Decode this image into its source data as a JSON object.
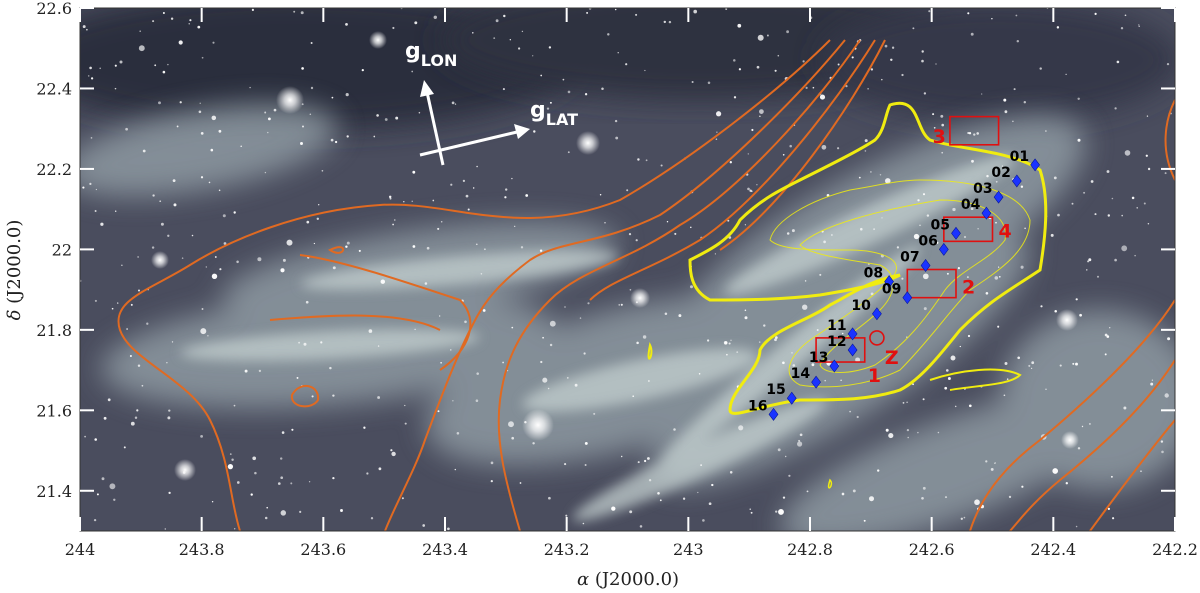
{
  "x_axis": {
    "label_symbol": "α",
    "label_text": " (J2000.0)",
    "ticks": [
      "244",
      "243.8",
      "243.6",
      "243.4",
      "243.2",
      "243",
      "242.8",
      "242.6",
      "242.4",
      "242.2"
    ]
  },
  "y_axis": {
    "label_symbol": "δ",
    "label_text": " (J2000.0)",
    "ticks": [
      "22.6",
      "22.4",
      "22.2",
      "22",
      "21.8",
      "21.6",
      "21.4"
    ]
  },
  "direction_arrows": {
    "lon_main": "g",
    "lon_sub": "LON",
    "lat_main": "g",
    "lat_sub": "LAT"
  },
  "markers": [
    {
      "label": "01",
      "ra": 242.43,
      "dec": 22.21
    },
    {
      "label": "02",
      "ra": 242.46,
      "dec": 22.17
    },
    {
      "label": "03",
      "ra": 242.49,
      "dec": 22.13
    },
    {
      "label": "04",
      "ra": 242.51,
      "dec": 22.09
    },
    {
      "label": "05",
      "ra": 242.56,
      "dec": 22.04
    },
    {
      "label": "06",
      "ra": 242.58,
      "dec": 22.0
    },
    {
      "label": "07",
      "ra": 242.61,
      "dec": 21.96
    },
    {
      "label": "08",
      "ra": 242.67,
      "dec": 21.92
    },
    {
      "label": "09",
      "ra": 242.64,
      "dec": 21.88
    },
    {
      "label": "10",
      "ra": 242.69,
      "dec": 21.84
    },
    {
      "label": "11",
      "ra": 242.73,
      "dec": 21.79
    },
    {
      "label": "12",
      "ra": 242.73,
      "dec": 21.75
    },
    {
      "label": "13",
      "ra": 242.76,
      "dec": 21.71
    },
    {
      "label": "14",
      "ra": 242.79,
      "dec": 21.67
    },
    {
      "label": "15",
      "ra": 242.83,
      "dec": 21.63
    },
    {
      "label": "16",
      "ra": 242.86,
      "dec": 21.59
    }
  ],
  "regions": [
    {
      "label": "1",
      "ra_min": 242.71,
      "ra_max": 242.79,
      "dec_min": 21.72,
      "dec_max": 21.78
    },
    {
      "label": "2",
      "ra_min": 242.56,
      "ra_max": 242.64,
      "dec_min": 21.88,
      "dec_max": 21.95
    },
    {
      "label": "3",
      "ra_min": 242.49,
      "ra_max": 242.57,
      "dec_min": 22.26,
      "dec_max": 22.33
    },
    {
      "label": "4",
      "ra_min": 242.5,
      "ra_max": 242.58,
      "dec_min": 22.02,
      "dec_max": 22.08
    }
  ],
  "circle_marker": {
    "label": "Z",
    "ra": 242.69,
    "dec": 21.78
  },
  "colors": {
    "image_background": "#4a4d5e",
    "marker": "#1a33ff",
    "region_box": "#e01010",
    "yellow_contour": "#f0ec10",
    "orange_contour": "#e06a22"
  }
}
